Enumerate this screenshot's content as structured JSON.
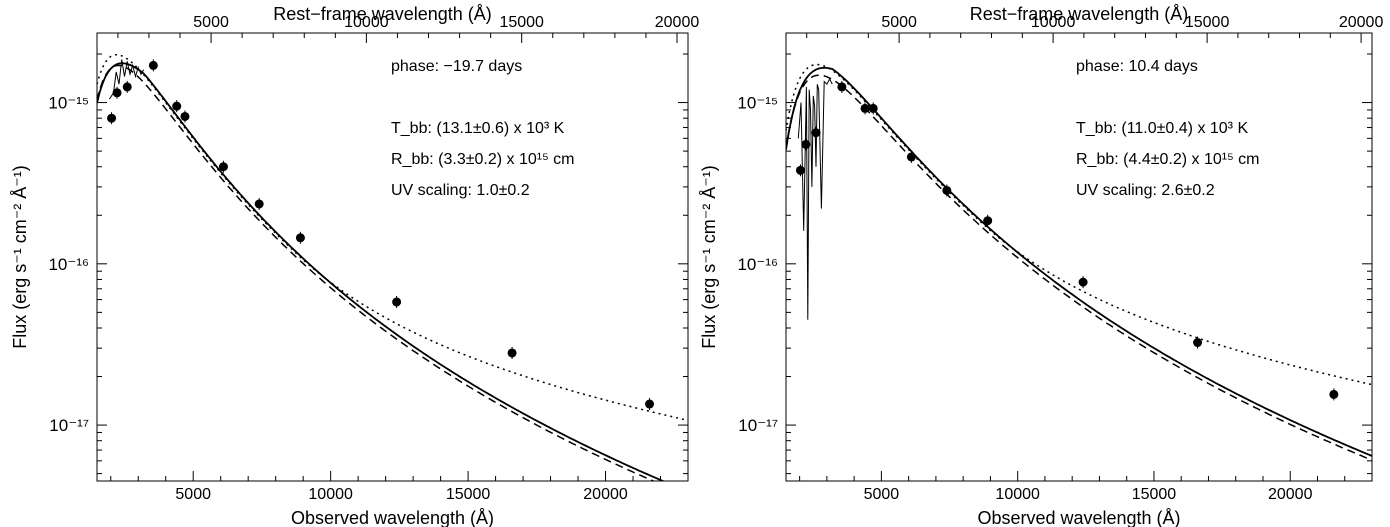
{
  "chart_data": [
    {
      "type": "scatter",
      "xlabel": "Observed wavelength (Å)",
      "xlabel_top": "Rest−frame wavelength (Å)",
      "ylabel": "Flux (erg s⁻¹ cm⁻² Å⁻¹)",
      "yscale": "log",
      "xlim": [
        1500,
        23000
      ],
      "ylim": [
        4.5e-18,
        2.7e-15
      ],
      "x_ticks": [
        5000,
        10000,
        15000,
        20000
      ],
      "x_tick_labels": [
        "5000",
        "10000",
        "15000",
        "20000"
      ],
      "top_ticks_rest": [
        5000,
        10000,
        15000,
        20000
      ],
      "top_tick_labels": [
        "5000",
        "10000",
        "15000",
        "20000"
      ],
      "y_ticks": [
        1e-17,
        1e-16,
        1e-15
      ],
      "y_tick_labels": [
        "10⁻¹⁷",
        "10⁻¹⁶",
        "10⁻¹⁵"
      ],
      "annotations": {
        "phase": "phase: −19.7 days",
        "tbb": "T_bb: (13.1±0.6) x 10³ K",
        "rbb": "R_bb: (3.3±0.2) x 10¹⁵ cm",
        "uv": "UV scaling: 1.0±0.2"
      },
      "points": {
        "x": [
          2030,
          2230,
          2600,
          3550,
          4400,
          4700,
          6100,
          7400,
          8900,
          12400,
          16600,
          21600
        ],
        "y": [
          8e-16,
          1.15e-15,
          1.25e-15,
          1.7e-15,
          9.5e-16,
          8.2e-16,
          4e-16,
          2.35e-16,
          1.45e-16,
          5.8e-17,
          2.8e-17,
          1.35e-17
        ]
      },
      "model": {
        "T": 13100,
        "scale": 1e-15,
        "scale_at": 4000
      },
      "spectrum": {
        "x": [
          1950,
          2100,
          2200,
          2300,
          2400,
          2500,
          2600,
          2700,
          2800,
          2900,
          3000,
          3100,
          3200
        ],
        "y": [
          1.05e-15,
          1.15e-15,
          1.55e-15,
          1.3e-15,
          1.85e-15,
          1.45e-15,
          1.8e-15,
          1.5e-15,
          1.7e-15,
          1.45e-15,
          1.65e-15,
          1.5e-15,
          1.6e-15
        ]
      }
    },
    {
      "type": "scatter",
      "xlabel": "Observed wavelength (Å)",
      "xlabel_top": "Rest−frame wavelength (Å)",
      "ylabel": "Flux (erg s⁻¹ cm⁻² Å⁻¹)",
      "yscale": "log",
      "xlim": [
        1500,
        23000
      ],
      "ylim": [
        4.5e-18,
        2.7e-15
      ],
      "x_ticks": [
        5000,
        10000,
        15000,
        20000
      ],
      "x_tick_labels": [
        "5000",
        "10000",
        "15000",
        "20000"
      ],
      "top_ticks_rest": [
        5000,
        10000,
        15000,
        20000
      ],
      "top_tick_labels": [
        "5000",
        "10000",
        "15000",
        "20000"
      ],
      "y_ticks": [
        1e-17,
        1e-16,
        1e-15
      ],
      "y_tick_labels": [
        "10⁻¹⁷",
        "10⁻¹⁶",
        "10⁻¹⁵"
      ],
      "annotations": {
        "phase": "phase:  10.4 days",
        "tbb": "T_bb: (11.0±0.4) x 10³ K",
        "rbb": "R_bb: (4.4±0.2) x 10¹⁵ cm",
        "uv": "UV scaling: 2.6±0.2"
      },
      "points": {
        "x": [
          2030,
          2230,
          2600,
          3550,
          4400,
          4700,
          6100,
          7400,
          8900,
          12400,
          16600,
          21600
        ],
        "y": [
          3.8e-16,
          5.5e-16,
          6.5e-16,
          1.25e-15,
          9.2e-16,
          9.2e-16,
          4.6e-16,
          2.85e-16,
          1.85e-16,
          7.7e-17,
          3.25e-17,
          1.55e-17
        ]
      },
      "model": {
        "T": 11000,
        "scale": 1.2e-15,
        "scale_at": 4000
      },
      "spectrum": {
        "x": [
          1950,
          2050,
          2150,
          2250,
          2300,
          2350,
          2400,
          2450,
          2500,
          2550,
          2600,
          2650,
          2700,
          2800,
          2900,
          3000,
          3100,
          3200
        ],
        "y": [
          6e-16,
          1e-15,
          1.6e-16,
          1.25e-15,
          4.5e-17,
          1.2e-15,
          9e-16,
          3e-16,
          1.1e-15,
          9.5e-16,
          4e-16,
          1.3e-15,
          1.2e-15,
          2.2e-16,
          1.35e-15,
          1.3e-15,
          1.4e-15,
          1.3e-15
        ]
      }
    }
  ]
}
